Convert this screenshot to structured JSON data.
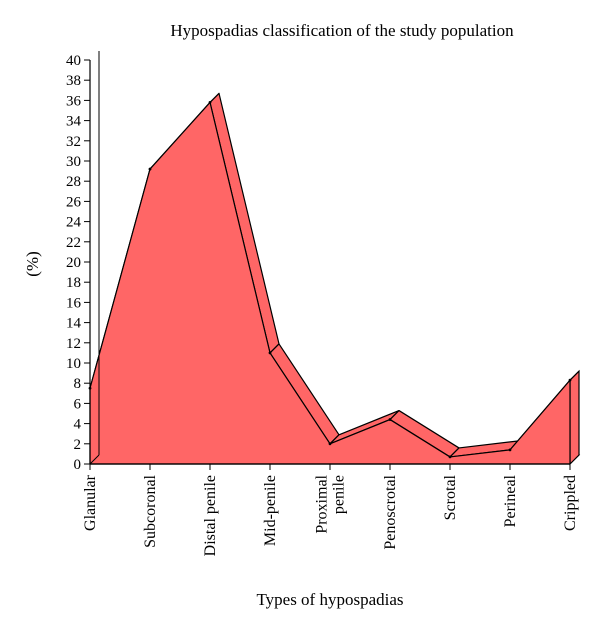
{
  "chart_data": {
    "type": "area",
    "title": "Hypospadias classification of the study population",
    "xlabel": "Types of hypospadias",
    "ylabel": "(%)",
    "ylim": [
      0,
      40
    ],
    "yticks": [
      0,
      2,
      4,
      6,
      8,
      10,
      12,
      14,
      16,
      18,
      20,
      22,
      24,
      26,
      28,
      30,
      32,
      34,
      36,
      38,
      40
    ],
    "categories": [
      [
        "Glanular"
      ],
      [
        "Subcoronal"
      ],
      [
        "Distal penile"
      ],
      [
        "Mid-penile"
      ],
      [
        "Proximal",
        "penile"
      ],
      [
        "Penoscrotal"
      ],
      [
        "Scrotal"
      ],
      [
        "Perineal"
      ],
      [
        "Crippled"
      ]
    ],
    "series": [
      {
        "values": [
          7.5,
          29.2,
          35.8,
          11.0,
          2.0,
          4.4,
          0.7,
          1.4,
          8.3
        ]
      }
    ],
    "grid": false,
    "style": "3d",
    "colors": {
      "fill": "#ff6666",
      "edge": "#000000",
      "axis": "#000000"
    }
  }
}
